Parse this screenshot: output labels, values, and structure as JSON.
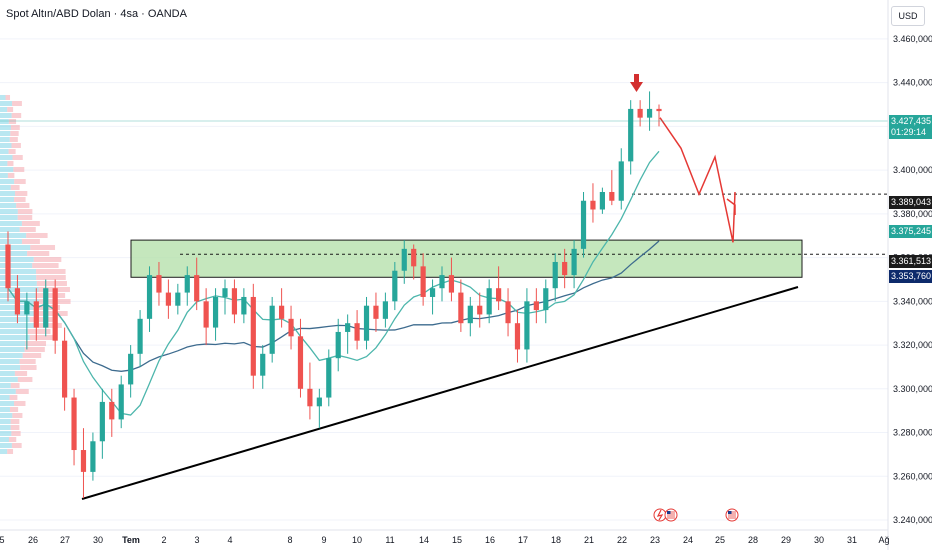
{
  "header": {
    "title": "Spot Altın/ABD Dolan · 4sa · OANDA",
    "currency_button": "USD"
  },
  "colors": {
    "bull": "#26a69a",
    "bear": "#ef5350",
    "zone_fill": "#b7e1ad",
    "zone_stroke": "#1b1b1b",
    "ma_fast": "#4db6ac",
    "ma_slow": "#3d6b8e",
    "trendline": "#000000",
    "projection": "#e53935",
    "arrow": "#d32f2f",
    "current_price_bg": "#26a69a",
    "support_tag_bg": "#1b1b1b",
    "blue_tag_bg": "#0d2a6b",
    "gauge_teal": "#26a69a"
  },
  "price_tags": {
    "current": {
      "value": "3.427,435",
      "countdown": "01:29:14"
    },
    "level_1": "3.389,043",
    "ma_fast": "3.375,245",
    "level_2": "3.361,513",
    "ma_slow": "3.353,760"
  },
  "event_icons": [
    "lightning-icon",
    "us-flag-icon",
    "us-flag-icon"
  ],
  "chart_data": {
    "type": "candlestick",
    "y_ticks": [
      "3.460,000",
      "3.440,000",
      "3.420,000",
      "3.400,000",
      "3.380,000",
      "3.360,000",
      "3.340,000",
      "3.320,000",
      "3.300,000",
      "3.280,000",
      "3.260,000",
      "3.240,000"
    ],
    "y_range": [
      3236,
      3470
    ],
    "x_ticks": [
      "5",
      "26",
      "27",
      "30",
      "Tem",
      "2",
      "3",
      "4",
      "8",
      "9",
      "10",
      "11",
      "14",
      "15",
      "16",
      "17",
      "18",
      "21",
      "22",
      "23",
      "24",
      "25",
      "28",
      "29",
      "30",
      "31",
      "Ağ"
    ],
    "candles": [
      [
        3366,
        3372,
        3340,
        3346
      ],
      [
        3346,
        3352,
        3330,
        3334
      ],
      [
        3334,
        3344,
        3318,
        3340
      ],
      [
        3340,
        3346,
        3322,
        3328
      ],
      [
        3328,
        3350,
        3324,
        3346
      ],
      [
        3346,
        3350,
        3316,
        3322
      ],
      [
        3322,
        3328,
        3290,
        3296
      ],
      [
        3296,
        3300,
        3265,
        3272
      ],
      [
        3272,
        3282,
        3250,
        3262
      ],
      [
        3262,
        3280,
        3258,
        3276
      ],
      [
        3276,
        3300,
        3268,
        3294
      ],
      [
        3294,
        3300,
        3278,
        3286
      ],
      [
        3286,
        3306,
        3282,
        3302
      ],
      [
        3302,
        3320,
        3296,
        3316
      ],
      [
        3316,
        3336,
        3310,
        3332
      ],
      [
        3332,
        3356,
        3326,
        3352
      ],
      [
        3352,
        3358,
        3338,
        3344
      ],
      [
        3344,
        3350,
        3332,
        3338
      ],
      [
        3338,
        3348,
        3334,
        3344
      ],
      [
        3344,
        3356,
        3338,
        3352
      ],
      [
        3352,
        3360,
        3336,
        3340
      ],
      [
        3340,
        3346,
        3320,
        3328
      ],
      [
        3328,
        3346,
        3322,
        3342
      ],
      [
        3342,
        3350,
        3334,
        3346
      ],
      [
        3346,
        3350,
        3330,
        3334
      ],
      [
        3334,
        3346,
        3330,
        3342
      ],
      [
        3342,
        3348,
        3300,
        3306
      ],
      [
        3306,
        3320,
        3300,
        3316
      ],
      [
        3316,
        3342,
        3312,
        3338
      ],
      [
        3338,
        3346,
        3328,
        3332
      ],
      [
        3332,
        3338,
        3318,
        3324
      ],
      [
        3324,
        3332,
        3296,
        3300
      ],
      [
        3300,
        3312,
        3286,
        3292
      ],
      [
        3292,
        3300,
        3282,
        3296
      ],
      [
        3296,
        3318,
        3292,
        3314
      ],
      [
        3314,
        3332,
        3308,
        3326
      ],
      [
        3326,
        3334,
        3316,
        3330
      ],
      [
        3330,
        3336,
        3318,
        3322
      ],
      [
        3322,
        3342,
        3318,
        3338
      ],
      [
        3338,
        3344,
        3326,
        3332
      ],
      [
        3332,
        3344,
        3328,
        3340
      ],
      [
        3340,
        3358,
        3336,
        3354
      ],
      [
        3354,
        3368,
        3348,
        3364
      ],
      [
        3364,
        3366,
        3350,
        3356
      ],
      [
        3356,
        3362,
        3338,
        3342
      ],
      [
        3342,
        3350,
        3334,
        3346
      ],
      [
        3346,
        3356,
        3340,
        3352
      ],
      [
        3352,
        3360,
        3340,
        3344
      ],
      [
        3344,
        3350,
        3326,
        3330
      ],
      [
        3330,
        3342,
        3324,
        3338
      ],
      [
        3338,
        3344,
        3328,
        3334
      ],
      [
        3334,
        3350,
        3330,
        3346
      ],
      [
        3346,
        3356,
        3336,
        3340
      ],
      [
        3340,
        3346,
        3324,
        3330
      ],
      [
        3330,
        3336,
        3312,
        3318
      ],
      [
        3318,
        3346,
        3312,
        3340
      ],
      [
        3340,
        3346,
        3330,
        3336
      ],
      [
        3336,
        3350,
        3330,
        3346
      ],
      [
        3346,
        3362,
        3340,
        3358
      ],
      [
        3358,
        3364,
        3346,
        3352
      ],
      [
        3352,
        3368,
        3346,
        3364
      ],
      [
        3364,
        3390,
        3360,
        3386
      ],
      [
        3386,
        3394,
        3376,
        3382
      ],
      [
        3382,
        3392,
        3380,
        3390
      ],
      [
        3390,
        3400,
        3384,
        3386
      ],
      [
        3386,
        3410,
        3382,
        3404
      ],
      [
        3404,
        3432,
        3398,
        3428
      ],
      [
        3428,
        3432,
        3420,
        3424
      ],
      [
        3424,
        3436,
        3418,
        3428
      ],
      [
        3428,
        3430,
        3420,
        3427
      ]
    ],
    "resistance_zone": [
      3351,
      3368
    ],
    "dashed_levels": [
      3389.043,
      3361.513
    ],
    "projection_path": [
      3424,
      3410,
      3389,
      3406,
      3367,
      3390
    ],
    "annotation": "down arrow above recent high"
  }
}
